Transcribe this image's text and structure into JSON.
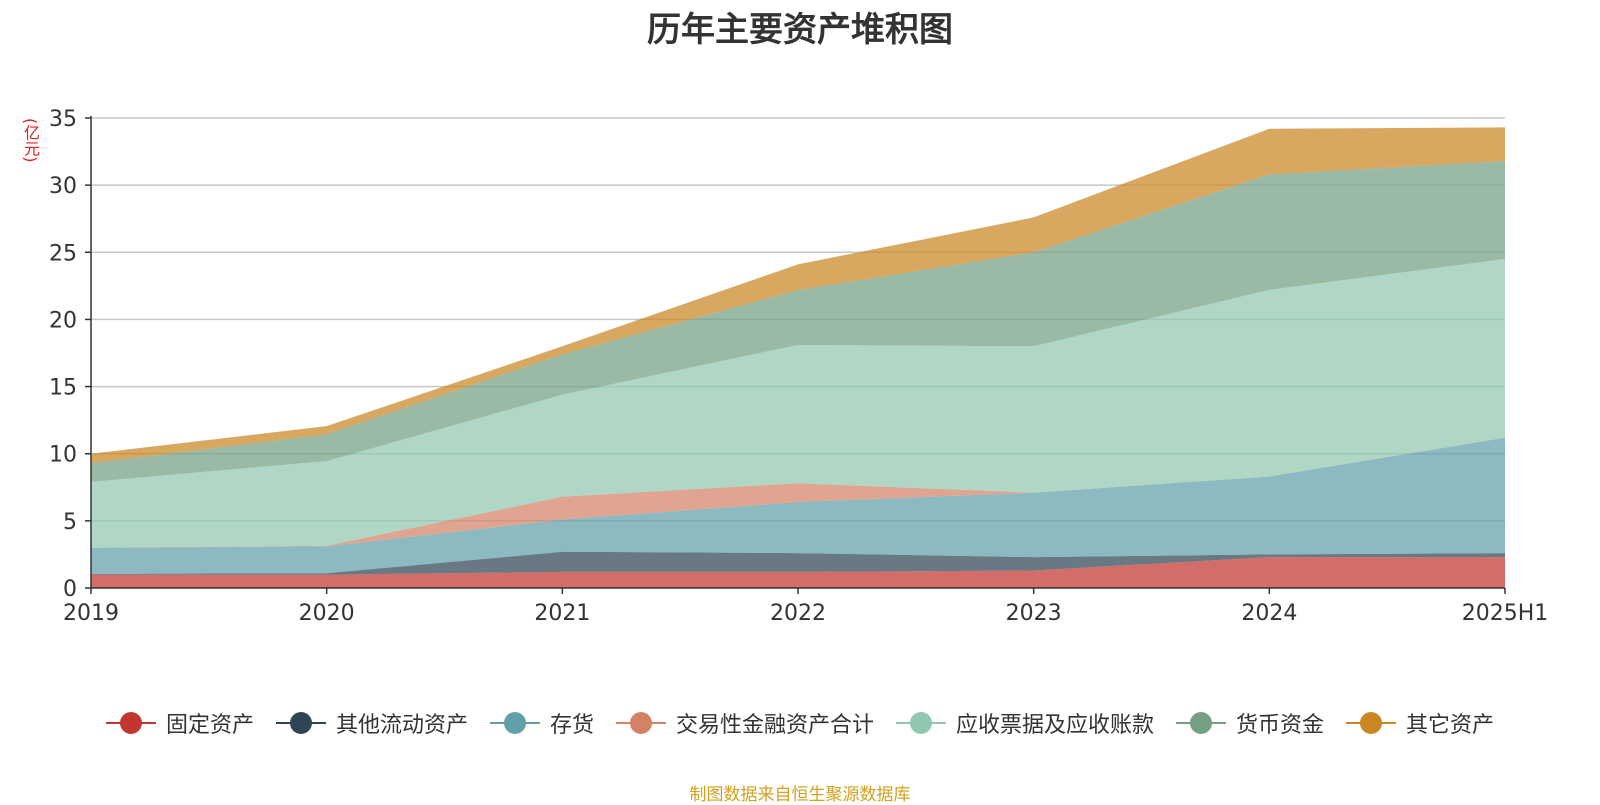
{
  "chart_data": {
    "type": "area",
    "stacked": true,
    "title": "历年主要资产堆积图",
    "unit_label": "(亿元)",
    "categories": [
      "2019",
      "2020",
      "2021",
      "2022",
      "2023",
      "2024",
      "2025H1"
    ],
    "ylim": [
      0,
      35
    ],
    "yticks": [
      0,
      5,
      10,
      15,
      20,
      25,
      30,
      35
    ],
    "grid": true,
    "legend_position": "bottom",
    "series": [
      {
        "name": "固定资产",
        "color": "#c23531",
        "values": [
          1.0,
          1.0,
          1.2,
          1.2,
          1.3,
          2.3,
          2.3
        ]
      },
      {
        "name": "其他流动资产",
        "color": "#2f4554",
        "values": [
          0.05,
          0.1,
          1.5,
          1.4,
          1.0,
          0.2,
          0.3
        ]
      },
      {
        "name": "存货",
        "color": "#61a0a8",
        "values": [
          1.95,
          2.0,
          2.4,
          3.8,
          4.8,
          5.8,
          8.6
        ]
      },
      {
        "name": "交易性金融资产合计",
        "color": "#d48265",
        "values": [
          0.0,
          0.05,
          1.7,
          1.4,
          0.0,
          0.0,
          0.0
        ]
      },
      {
        "name": "应收票据及应收账款",
        "color": "#91c7ae",
        "values": [
          4.9,
          6.3,
          7.6,
          10.3,
          10.9,
          13.9,
          13.3
        ]
      },
      {
        "name": "货币资金",
        "color": "#749f83",
        "values": [
          1.4,
          2.0,
          3.0,
          4.1,
          7.0,
          8.6,
          7.3
        ]
      },
      {
        "name": "其它资产",
        "color": "#ca8622",
        "values": [
          0.7,
          0.6,
          0.6,
          1.9,
          2.6,
          3.4,
          2.5
        ]
      }
    ]
  },
  "source_note": "制图数据来自恒生聚源数据库"
}
